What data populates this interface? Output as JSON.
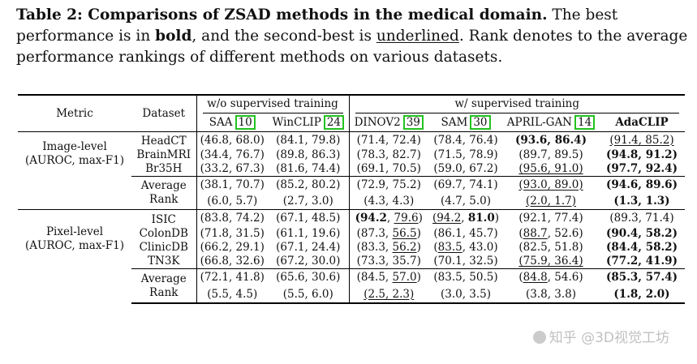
{
  "caption": {
    "label": "Table 2: Comparisons of ZSAD methods in the medical domain.",
    "line1_tail": " The best",
    "line2a": "performance is in ",
    "line2_bold": "bold",
    "line2b": ", and the second-best is ",
    "line2_underlined": "underlined",
    "line2c": ". Rank denotes to the average",
    "line3": "performance rankings of different methods on various datasets."
  },
  "header": {
    "metric": "Metric",
    "dataset": "Dataset",
    "group1": "w/o supervised training",
    "group2": "w/ supervised training",
    "methods": [
      {
        "name": "SAA",
        "ref": "10"
      },
      {
        "name": "WinCLIP",
        "ref": "24"
      },
      {
        "name": "DINOV2",
        "ref": "39"
      },
      {
        "name": "SAM",
        "ref": "30"
      },
      {
        "name": "APRIL-GAN",
        "ref": "14"
      },
      {
        "name": "AdaCLIP",
        "ref": ""
      }
    ]
  },
  "image_level": {
    "metric_line1": "Image-level",
    "metric_line2": "(AUROC, max-F1)",
    "rows": [
      {
        "dataset": "HeadCT",
        "cells": [
          "(46.8, 68.0)",
          "(84.1, 79.8)",
          "(71.4, 72.4)",
          "(78.4, 76.4)",
          "(93.6, 86.4)",
          "(91.4, 85.2)"
        ]
      },
      {
        "dataset": "BrainMRI",
        "cells": [
          "(34.4, 76.7)",
          "(89.8, 86.3)",
          "(78.3, 82.7)",
          "(71.5, 78.9)",
          "(89.7, 89.5)",
          "(94.8, 91.2)"
        ]
      },
      {
        "dataset": "Br35H",
        "cells": [
          "(33.2, 67.3)",
          "(81.6, 74.4)",
          "(69.1, 70.5)",
          "(59.0, 67.2)",
          "(95.6, 91.0)",
          "(97.7, 92.4)"
        ]
      }
    ],
    "average": {
      "label": "Average",
      "cells": [
        "(38.1, 70.7)",
        "(85.2, 80.2)",
        "(72.9, 75.2)",
        "(69.7, 74.1)",
        "(93.0, 89.0)",
        "(94.6, 89.6)"
      ]
    },
    "rank": {
      "label": "Rank",
      "cells": [
        "(6.0, 5.7)",
        "(2.7, 3.0)",
        "(4.3, 4.3)",
        "(4.7, 5.0)",
        "(2.0, 1.7)",
        "(1.3, 1.3)"
      ]
    }
  },
  "pixel_level": {
    "metric_line1": "Pixel-level",
    "metric_line2": "(AUROC, max-F1)",
    "rows": [
      {
        "dataset": "ISIC",
        "cells": [
          "(83.8, 74.2)",
          "(67.1, 48.5)",
          "(94.2, 79.6)",
          "(94.2, 81.0)",
          "(92.1, 77.4)",
          "(89.3, 71.4)"
        ]
      },
      {
        "dataset": "ColonDB",
        "cells": [
          "(71.8, 31.5)",
          "(61.1, 19.6)",
          "(87.3, 56.5)",
          "(86.1, 45.7)",
          "(88.7, 52.6)",
          "(90.4, 58.2)"
        ]
      },
      {
        "dataset": "ClinicDB",
        "cells": [
          "(66.2, 29.1)",
          "(67.1, 24.4)",
          "(83.3, 56.2)",
          "(83.5, 43.0)",
          "(82.5, 51.8)",
          "(84.4, 58.2)"
        ]
      },
      {
        "dataset": "TN3K",
        "cells": [
          "(66.8, 32.6)",
          "(67.2, 30.0)",
          "(73.3, 35.7)",
          "(70.1, 32.5)",
          "(75.9, 36.4)",
          "(77.2, 41.9)"
        ]
      }
    ],
    "average": {
      "label": "Average",
      "cells": [
        "(72.1, 41.8)",
        "(65.6, 30.6)",
        "(84.5, 57.0)",
        "(83.5, 50.5)",
        "(84.8, 54.6)",
        "(85.3, 57.4)"
      ]
    },
    "rank": {
      "label": "Rank",
      "cells": [
        "(5.5, 4.5)",
        "(5.5, 6.0)",
        "(2.5, 2.3)",
        "(3.0, 3.5)",
        "(3.8, 3.8)",
        "(1.8, 2.0)"
      ]
    }
  },
  "watermark": "知乎 @3D视觉工坊"
}
